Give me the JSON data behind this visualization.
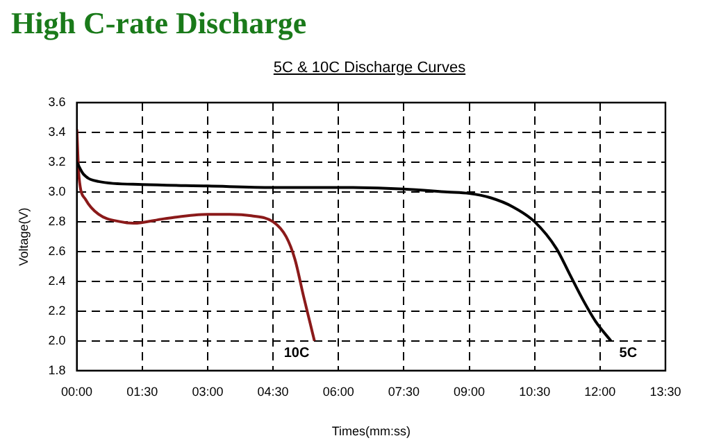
{
  "chart_data": {
    "type": "line",
    "title": "High C-rate Discharge",
    "subtitle": "5C & 10C Discharge Curves",
    "xlabel": "Times(mm:ss)",
    "ylabel": "Voltage(V)",
    "xlim": [
      0,
      13.5
    ],
    "xticks": [
      {
        "value": 0,
        "label": "00:00"
      },
      {
        "value": 1.5,
        "label": "01:30"
      },
      {
        "value": 3,
        "label": "03:00"
      },
      {
        "value": 4.5,
        "label": "04:30"
      },
      {
        "value": 6,
        "label": "06:00"
      },
      {
        "value": 7.5,
        "label": "07:30"
      },
      {
        "value": 9,
        "label": "09:00"
      },
      {
        "value": 10.5,
        "label": "10:30"
      },
      {
        "value": 12,
        "label": "12:00"
      },
      {
        "value": 13.5,
        "label": "13:30"
      }
    ],
    "ylim": [
      1.8,
      3.6
    ],
    "yticks": [
      {
        "value": 1.8,
        "label": "1.8"
      },
      {
        "value": 2.0,
        "label": "2.0"
      },
      {
        "value": 2.2,
        "label": "2.2"
      },
      {
        "value": 2.4,
        "label": "2.4"
      },
      {
        "value": 2.6,
        "label": "2.6"
      },
      {
        "value": 2.8,
        "label": "2.8"
      },
      {
        "value": 3.0,
        "label": "3.0"
      },
      {
        "value": 3.2,
        "label": "3.2"
      },
      {
        "value": 3.4,
        "label": "3.4"
      },
      {
        "value": 3.6,
        "label": "3.6"
      }
    ],
    "grid": true,
    "marker": "none",
    "series": [
      {
        "name": "5C",
        "color": "#000000",
        "x": [
          0,
          0.15,
          0.5,
          1.5,
          3,
          4.5,
          6,
          7.5,
          8.5,
          9,
          9.5,
          10,
          10.5,
          11,
          11.3,
          11.6,
          11.9,
          12.25
        ],
        "values": [
          3.2,
          3.12,
          3.07,
          3.05,
          3.04,
          3.03,
          3.03,
          3.02,
          3.0,
          2.99,
          2.96,
          2.9,
          2.8,
          2.62,
          2.45,
          2.28,
          2.13,
          2.0
        ]
      },
      {
        "name": "10C",
        "color": "#8b1a1a",
        "x": [
          0,
          0.05,
          0.2,
          0.5,
          1,
          1.3,
          2,
          3,
          3.5,
          4,
          4.5,
          4.8,
          5,
          5.2,
          5.35,
          5.45
        ],
        "values": [
          3.42,
          3.1,
          2.95,
          2.85,
          2.8,
          2.79,
          2.82,
          2.85,
          2.85,
          2.84,
          2.8,
          2.7,
          2.55,
          2.3,
          2.12,
          2.0
        ]
      }
    ]
  }
}
